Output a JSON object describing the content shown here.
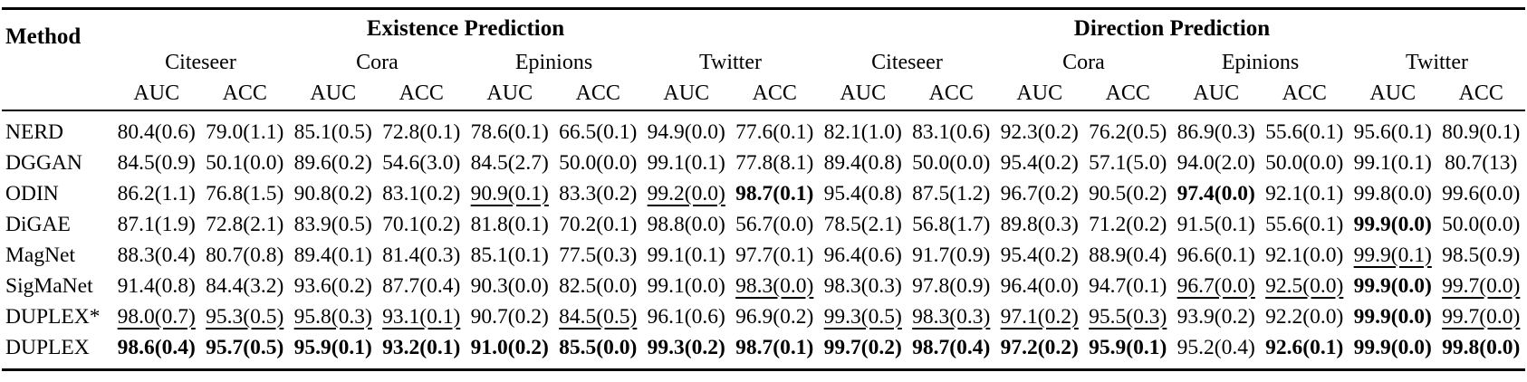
{
  "colors": {
    "text": "#000000",
    "background": "#ffffff"
  },
  "table": {
    "method_header": "Method",
    "sections": [
      "Existence Prediction",
      "Direction Prediction"
    ],
    "dataset_headers": [
      "Citeseer",
      "Cora",
      "Epinions",
      "Twitter",
      "Citeseer",
      "Cora",
      "Epinions",
      "Twitter"
    ],
    "metric_headers": [
      "AUC",
      "ACC",
      "AUC",
      "ACC",
      "AUC",
      "ACC",
      "AUC",
      "ACC",
      "AUC",
      "ACC",
      "AUC",
      "ACC",
      "AUC",
      "ACC",
      "AUC",
      "ACC"
    ],
    "rows": [
      {
        "method": "NERD",
        "cells": [
          {
            "v": "80.4(0.6)"
          },
          {
            "v": "79.0(1.1)"
          },
          {
            "v": "85.1(0.5)"
          },
          {
            "v": "72.8(0.1)"
          },
          {
            "v": "78.6(0.1)"
          },
          {
            "v": "66.5(0.1)"
          },
          {
            "v": "94.9(0.0)"
          },
          {
            "v": "77.6(0.1)"
          },
          {
            "v": "82.1(1.0)"
          },
          {
            "v": "83.1(0.6)"
          },
          {
            "v": "92.3(0.2)"
          },
          {
            "v": "76.2(0.5)"
          },
          {
            "v": "86.9(0.3)"
          },
          {
            "v": "55.6(0.1)"
          },
          {
            "v": "95.6(0.1)"
          },
          {
            "v": "80.9(0.1)"
          }
        ]
      },
      {
        "method": "DGGAN",
        "cells": [
          {
            "v": "84.5(0.9)"
          },
          {
            "v": "50.1(0.0)"
          },
          {
            "v": "89.6(0.2)"
          },
          {
            "v": "54.6(3.0)"
          },
          {
            "v": "84.5(2.7)"
          },
          {
            "v": "50.0(0.0)"
          },
          {
            "v": "99.1(0.1)"
          },
          {
            "v": "77.8(8.1)"
          },
          {
            "v": "89.4(0.8)"
          },
          {
            "v": "50.0(0.0)"
          },
          {
            "v": "95.4(0.2)"
          },
          {
            "v": "57.1(5.0)"
          },
          {
            "v": "94.0(2.0)"
          },
          {
            "v": "50.0(0.0)"
          },
          {
            "v": "99.1(0.1)"
          },
          {
            "v": "80.7(13)"
          }
        ]
      },
      {
        "method": "ODIN",
        "cells": [
          {
            "v": "86.2(1.1)"
          },
          {
            "v": "76.8(1.5)"
          },
          {
            "v": "90.8(0.2)"
          },
          {
            "v": "83.1(0.2)"
          },
          {
            "v": "90.9(0.1)",
            "u": true
          },
          {
            "v": "83.3(0.2)"
          },
          {
            "v": "99.2(0.0)",
            "u": true
          },
          {
            "v": "98.7(0.1)",
            "b": true
          },
          {
            "v": "95.4(0.8)"
          },
          {
            "v": "87.5(1.2)"
          },
          {
            "v": "96.7(0.2)"
          },
          {
            "v": "90.5(0.2)"
          },
          {
            "v": "97.4(0.0)",
            "b": true
          },
          {
            "v": "92.1(0.1)"
          },
          {
            "v": "99.8(0.0)"
          },
          {
            "v": "99.6(0.0)"
          }
        ]
      },
      {
        "method": "DiGAE",
        "cells": [
          {
            "v": "87.1(1.9)"
          },
          {
            "v": "72.8(2.1)"
          },
          {
            "v": "83.9(0.5)"
          },
          {
            "v": "70.1(0.2)"
          },
          {
            "v": "81.8(0.1)"
          },
          {
            "v": "70.2(0.1)"
          },
          {
            "v": "98.8(0.0)"
          },
          {
            "v": "56.7(0.0)"
          },
          {
            "v": "78.5(2.1)"
          },
          {
            "v": "56.8(1.7)"
          },
          {
            "v": "89.8(0.3)"
          },
          {
            "v": "71.2(0.2)"
          },
          {
            "v": "91.5(0.1)"
          },
          {
            "v": "55.6(0.1)"
          },
          {
            "v": "99.9(0.0)",
            "b": true
          },
          {
            "v": "50.0(0.0)"
          }
        ]
      },
      {
        "method": "MagNet",
        "cells": [
          {
            "v": "88.3(0.4)"
          },
          {
            "v": "80.7(0.8)"
          },
          {
            "v": "89.4(0.1)"
          },
          {
            "v": "81.4(0.3)"
          },
          {
            "v": "85.1(0.1)"
          },
          {
            "v": "77.5(0.3)"
          },
          {
            "v": "99.1(0.1)"
          },
          {
            "v": "97.7(0.1)"
          },
          {
            "v": "96.4(0.6)"
          },
          {
            "v": "91.7(0.9)"
          },
          {
            "v": "95.4(0.2)"
          },
          {
            "v": "88.9(0.4)"
          },
          {
            "v": "96.6(0.1)"
          },
          {
            "v": "92.1(0.0)"
          },
          {
            "v": "99.9(0.1)",
            "u": true
          },
          {
            "v": "98.5(0.9)"
          }
        ]
      },
      {
        "method": "SigMaNet",
        "cells": [
          {
            "v": "91.4(0.8)"
          },
          {
            "v": "84.4(3.2)"
          },
          {
            "v": "93.6(0.2)"
          },
          {
            "v": "87.7(0.4)"
          },
          {
            "v": "90.3(0.0)"
          },
          {
            "v": "82.5(0.0)"
          },
          {
            "v": "99.1(0.0)"
          },
          {
            "v": "98.3(0.0)",
            "u": true
          },
          {
            "v": "98.3(0.3)"
          },
          {
            "v": "97.8(0.9)"
          },
          {
            "v": "96.4(0.0)"
          },
          {
            "v": "94.7(0.1)"
          },
          {
            "v": "96.7(0.0)",
            "u": true
          },
          {
            "v": "92.5(0.0)",
            "u": true
          },
          {
            "v": "99.9(0.0)",
            "b": true
          },
          {
            "v": "99.7(0.0)",
            "u": true
          }
        ]
      },
      {
        "method": "DUPLEX*",
        "cells": [
          {
            "v": "98.0(0.7)",
            "u": true
          },
          {
            "v": "95.3(0.5)",
            "u": true
          },
          {
            "v": "95.8(0.3)",
            "u": true
          },
          {
            "v": "93.1(0.1)",
            "u": true
          },
          {
            "v": "90.7(0.2)"
          },
          {
            "v": "84.5(0.5)",
            "u": true
          },
          {
            "v": "96.1(0.6)"
          },
          {
            "v": "96.9(0.2)"
          },
          {
            "v": "99.3(0.5)",
            "u": true
          },
          {
            "v": "98.3(0.3)",
            "u": true
          },
          {
            "v": "97.1(0.2)",
            "u": true
          },
          {
            "v": "95.5(0.3)",
            "u": true
          },
          {
            "v": "93.9(0.2)"
          },
          {
            "v": "92.2(0.0)"
          },
          {
            "v": "99.9(0.0)",
            "b": true
          },
          {
            "v": "99.7(0.0)",
            "u": true
          }
        ]
      },
      {
        "method": "DUPLEX",
        "cells": [
          {
            "v": "98.6(0.4)",
            "b": true
          },
          {
            "v": "95.7(0.5)",
            "b": true
          },
          {
            "v": "95.9(0.1)",
            "b": true
          },
          {
            "v": "93.2(0.1)",
            "b": true
          },
          {
            "v": "91.0(0.2)",
            "b": true
          },
          {
            "v": "85.5(0.0)",
            "b": true
          },
          {
            "v": "99.3(0.2)",
            "b": true
          },
          {
            "v": "98.7(0.1)",
            "b": true
          },
          {
            "v": "99.7(0.2)",
            "b": true
          },
          {
            "v": "98.7(0.4)",
            "b": true
          },
          {
            "v": "97.2(0.2)",
            "b": true
          },
          {
            "v": "95.9(0.1)",
            "b": true
          },
          {
            "v": "95.2(0.4)"
          },
          {
            "v": "92.6(0.1)",
            "b": true
          },
          {
            "v": "99.9(0.0)",
            "b": true
          },
          {
            "v": "99.8(0.0)",
            "b": true
          }
        ]
      }
    ]
  }
}
